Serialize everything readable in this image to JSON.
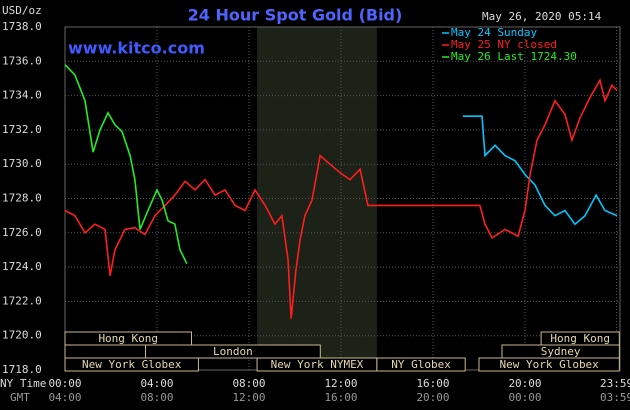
{
  "chart_data": {
    "type": "line",
    "title": "24 Hour Spot Gold (Bid)",
    "y_unit": "USD/oz",
    "watermark": "www.kitco.com",
    "timestamp": "May 26, 2020 05:14",
    "x_row_label": "NY Time",
    "x2_row_label": "GMT",
    "xlim": [
      0,
      24
    ],
    "xticks": [
      {
        "value": 0,
        "label": "00:00"
      },
      {
        "value": 4,
        "label": "04:00"
      },
      {
        "value": 8,
        "label": "08:00"
      },
      {
        "value": 12,
        "label": "12:00"
      },
      {
        "value": 16,
        "label": "16:00"
      },
      {
        "value": 20,
        "label": "20:00"
      },
      {
        "value": 23.98,
        "label": "23:59"
      }
    ],
    "x2ticks": [
      "04:00",
      "08:00",
      "12:00",
      "16:00",
      "20:00",
      "00:00",
      "03:59"
    ],
    "ylim": [
      1718,
      1738
    ],
    "yticks": [
      {
        "value": 1718,
        "label": "1718.0"
      },
      {
        "value": 1720,
        "label": "1720.0"
      },
      {
        "value": 1722,
        "label": "1722.0"
      },
      {
        "value": 1724,
        "label": "1724.0"
      },
      {
        "value": 1726,
        "label": "1726.0"
      },
      {
        "value": 1728,
        "label": "1728.0"
      },
      {
        "value": 1730,
        "label": "1730.0"
      },
      {
        "value": 1732,
        "label": "1732.0"
      },
      {
        "value": 1734,
        "label": "1734.0"
      },
      {
        "value": 1736,
        "label": "1736.0"
      },
      {
        "value": 1738,
        "label": "1738.0"
      }
    ],
    "grid": true,
    "sessions": [
      "Hong Kong",
      "Hong Kong",
      "London",
      "Sydney",
      "New York Globex",
      "New York NYMEX",
      "NY Globex",
      "New York Globex"
    ],
    "series": [
      {
        "name": "May 24 Sunday",
        "color": "#00c8ff",
        "x": [
          17.3,
          18.13,
          18.26,
          18.7,
          19.13,
          19.57,
          20.0,
          20.43,
          20.87,
          21.3,
          21.74,
          22.17,
          22.61,
          23.09,
          23.48,
          24.0
        ],
        "values": [
          1732.8,
          1732.8,
          1730.5,
          1731.1,
          1730.5,
          1730.2,
          1729.4,
          1728.8,
          1727.6,
          1727.0,
          1727.3,
          1726.5,
          1727.0,
          1728.2,
          1727.3,
          1727.0
        ]
      },
      {
        "name": "May 25 NY closed",
        "color": "#ff1e1e",
        "x": [
          0,
          0.43,
          0.87,
          1.3,
          1.74,
          1.96,
          2.17,
          2.61,
          3.04,
          3.48,
          3.91,
          4.35,
          4.78,
          5.22,
          5.65,
          6.09,
          6.52,
          6.96,
          7.39,
          7.83,
          8.26,
          8.7,
          9.13,
          9.43,
          9.7,
          9.83,
          10.04,
          10.22,
          10.43,
          10.74,
          11.09,
          11.52,
          11.96,
          12.39,
          12.83,
          13.17,
          13.26,
          18.04,
          18.26,
          18.57,
          19.13,
          19.7,
          20.0,
          20.22,
          20.52,
          20.87,
          21.3,
          21.74,
          22.04,
          22.39,
          22.83,
          23.26,
          23.48,
          23.78,
          24.0
        ],
        "values": [
          1727.3,
          1727.0,
          1726.0,
          1726.5,
          1726.2,
          1723.5,
          1725.0,
          1726.2,
          1726.3,
          1725.9,
          1727.0,
          1727.6,
          1728.2,
          1729.0,
          1728.5,
          1729.1,
          1728.2,
          1728.5,
          1727.6,
          1727.3,
          1728.5,
          1727.6,
          1726.5,
          1727.0,
          1724.4,
          1721.0,
          1723.8,
          1725.6,
          1727.0,
          1727.9,
          1730.5,
          1730.0,
          1729.5,
          1729.1,
          1729.7,
          1727.6,
          1727.6,
          1727.6,
          1726.5,
          1725.7,
          1726.2,
          1725.8,
          1727.3,
          1729.4,
          1731.4,
          1732.3,
          1733.7,
          1732.9,
          1731.4,
          1732.7,
          1733.9,
          1734.9,
          1733.7,
          1734.6,
          1734.3
        ]
      },
      {
        "name": "May 26 Last 1724.30",
        "color": "#22ee22",
        "x": [
          0,
          0.43,
          0.87,
          1.22,
          1.52,
          1.87,
          2.17,
          2.48,
          2.83,
          3.04,
          3.26,
          3.61,
          4.0,
          4.22,
          4.48,
          4.78,
          5.0,
          5.3
        ],
        "values": [
          1735.8,
          1735.2,
          1733.7,
          1730.7,
          1732.0,
          1733.0,
          1732.3,
          1731.9,
          1730.5,
          1729.1,
          1726.2,
          1727.3,
          1728.5,
          1727.9,
          1726.7,
          1726.5,
          1725.0,
          1724.2
        ]
      }
    ]
  }
}
